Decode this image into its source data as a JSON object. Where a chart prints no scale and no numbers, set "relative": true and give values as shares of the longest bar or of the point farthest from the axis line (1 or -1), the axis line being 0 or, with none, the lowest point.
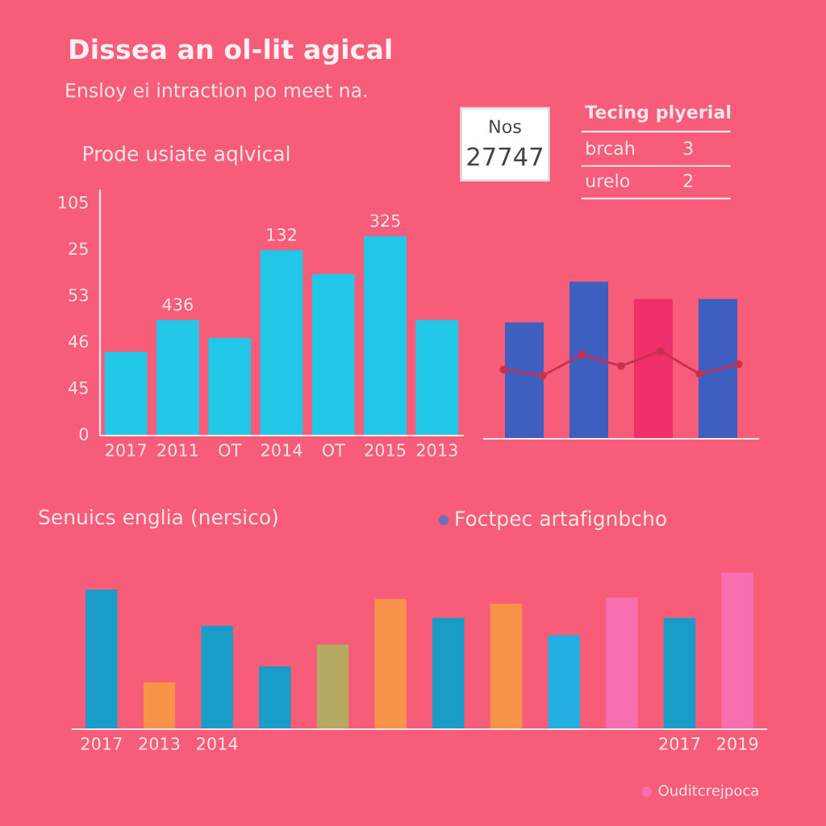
{
  "chart_data": [
    {
      "type": "bar",
      "relative": true,
      "title": "Dissea an ol-lit agical",
      "subtitle": "Ensloy ei intraction po meet na.",
      "categories": [
        "2017",
        "2011",
        "OT",
        "2014",
        "OT",
        "2015",
        "2013"
      ],
      "values": [
        0.42,
        0.58,
        0.49,
        0.93,
        0.81,
        1,
        0.58
      ],
      "color": "#22c8e8",
      "annotations": [
        "Prode usiate aqlvical",
        "0",
        "45",
        "46",
        "53",
        "25",
        "105",
        {
          "text": "436",
          "x": "2011",
          "y": 0.58
        },
        {
          "text": "132",
          "x": "2014",
          "y": 0.93
        },
        {
          "text": "325",
          "x": "2015",
          "y": 1
        }
      ]
    },
    {
      "type": "bar",
      "relative": true,
      "categories": [
        null,
        null,
        null,
        null
      ],
      "values": [
        0.74,
        1,
        0.89,
        0.89
      ],
      "colors": [
        "#3f5fc0",
        "#3f5fc0",
        "#f0306a",
        "#3f5fc0"
      ],
      "annotations": [
        "Nos",
        "27747",
        "Tecing plyerial",
        "brcah",
        "3",
        "urelo",
        "2"
      ]
    },
    {
      "type": "line",
      "relative": true,
      "categories": [
        null,
        null,
        null,
        null,
        null,
        null,
        null
      ],
      "color": "#c83050",
      "values": [
        0.79,
        0.72,
        0.96,
        0.83,
        1,
        0.74,
        0.85
      ],
      "marker": "circle"
    },
    {
      "type": "bar",
      "relative": true,
      "title": "Senuics englia (nersico)",
      "categories": [
        "2017",
        "2013",
        "2014",
        null,
        null,
        null,
        null,
        null,
        null,
        null,
        "2017",
        "2019"
      ],
      "values": [
        0.89,
        0.3,
        0.66,
        0.4,
        0.54,
        0.83,
        0.71,
        0.8,
        0.6,
        0.84,
        0.71,
        1
      ],
      "colors": [
        "#1a9cc8",
        "#f7944a",
        "#1a9cc8",
        "#1a9cc8",
        "#b5a860",
        "#f7944a",
        "#1a9cc8",
        "#f7944a",
        "#22aee0",
        "#f76fb0",
        "#1a9cc8",
        "#f76fb0"
      ],
      "annotations": [
        "Foctpec artafignbcho",
        "Ouditcrejpoca"
      ]
    }
  ]
}
